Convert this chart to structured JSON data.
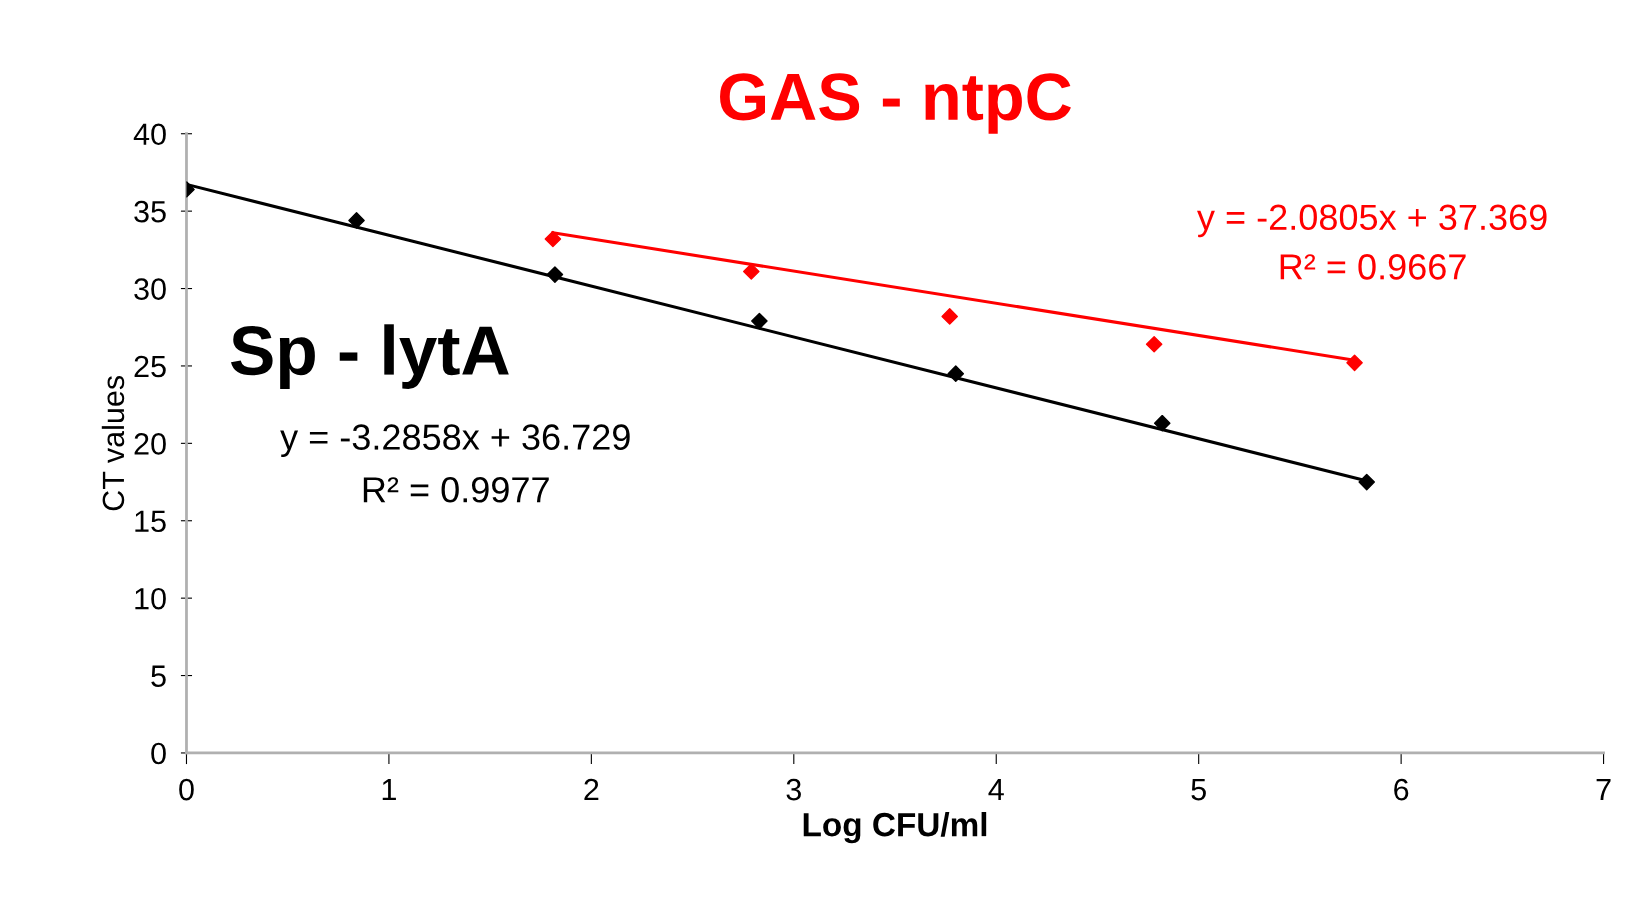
{
  "chart_data": {
    "type": "scatter",
    "title": "GAS - ntpC",
    "xlabel": "Log CFU/ml",
    "ylabel": "CT values",
    "xlim": [
      0,
      7
    ],
    "xticks": [
      0,
      1,
      2,
      3,
      4,
      5,
      6,
      7
    ],
    "ylim": [
      0,
      40
    ],
    "yticks": [
      0,
      5,
      10,
      15,
      20,
      25,
      30,
      35,
      40
    ],
    "grid": false,
    "legend": false,
    "series": [
      {
        "color": "#000000",
        "marker": "diamond",
        "x": [
          0.0,
          0.84,
          1.82,
          2.83,
          3.8,
          4.82,
          5.83
        ],
        "values": [
          36.4,
          34.4,
          30.9,
          27.9,
          24.5,
          21.3,
          17.5
        ]
      },
      {
        "color": "#ff0000",
        "marker": "diamond",
        "x": [
          1.81,
          2.79,
          3.77,
          4.78,
          5.77
        ],
        "values": [
          33.2,
          31.1,
          28.2,
          26.4,
          25.2
        ]
      },
      {
        "type": "line",
        "color": "#000000",
        "marker": "none",
        "x": [
          0.0,
          5.83
        ],
        "values": [
          36.73,
          17.57
        ]
      },
      {
        "type": "line",
        "color": "#ff0000",
        "marker": "none",
        "x": [
          1.81,
          5.77
        ],
        "values": [
          33.6,
          25.37
        ]
      }
    ],
    "annotations": [
      "Sp - lytA",
      "y = -3.2858x + 36.729",
      "R² = 0.9977",
      "y = -2.0805x + 37.369",
      "R² = 0.9667"
    ]
  }
}
